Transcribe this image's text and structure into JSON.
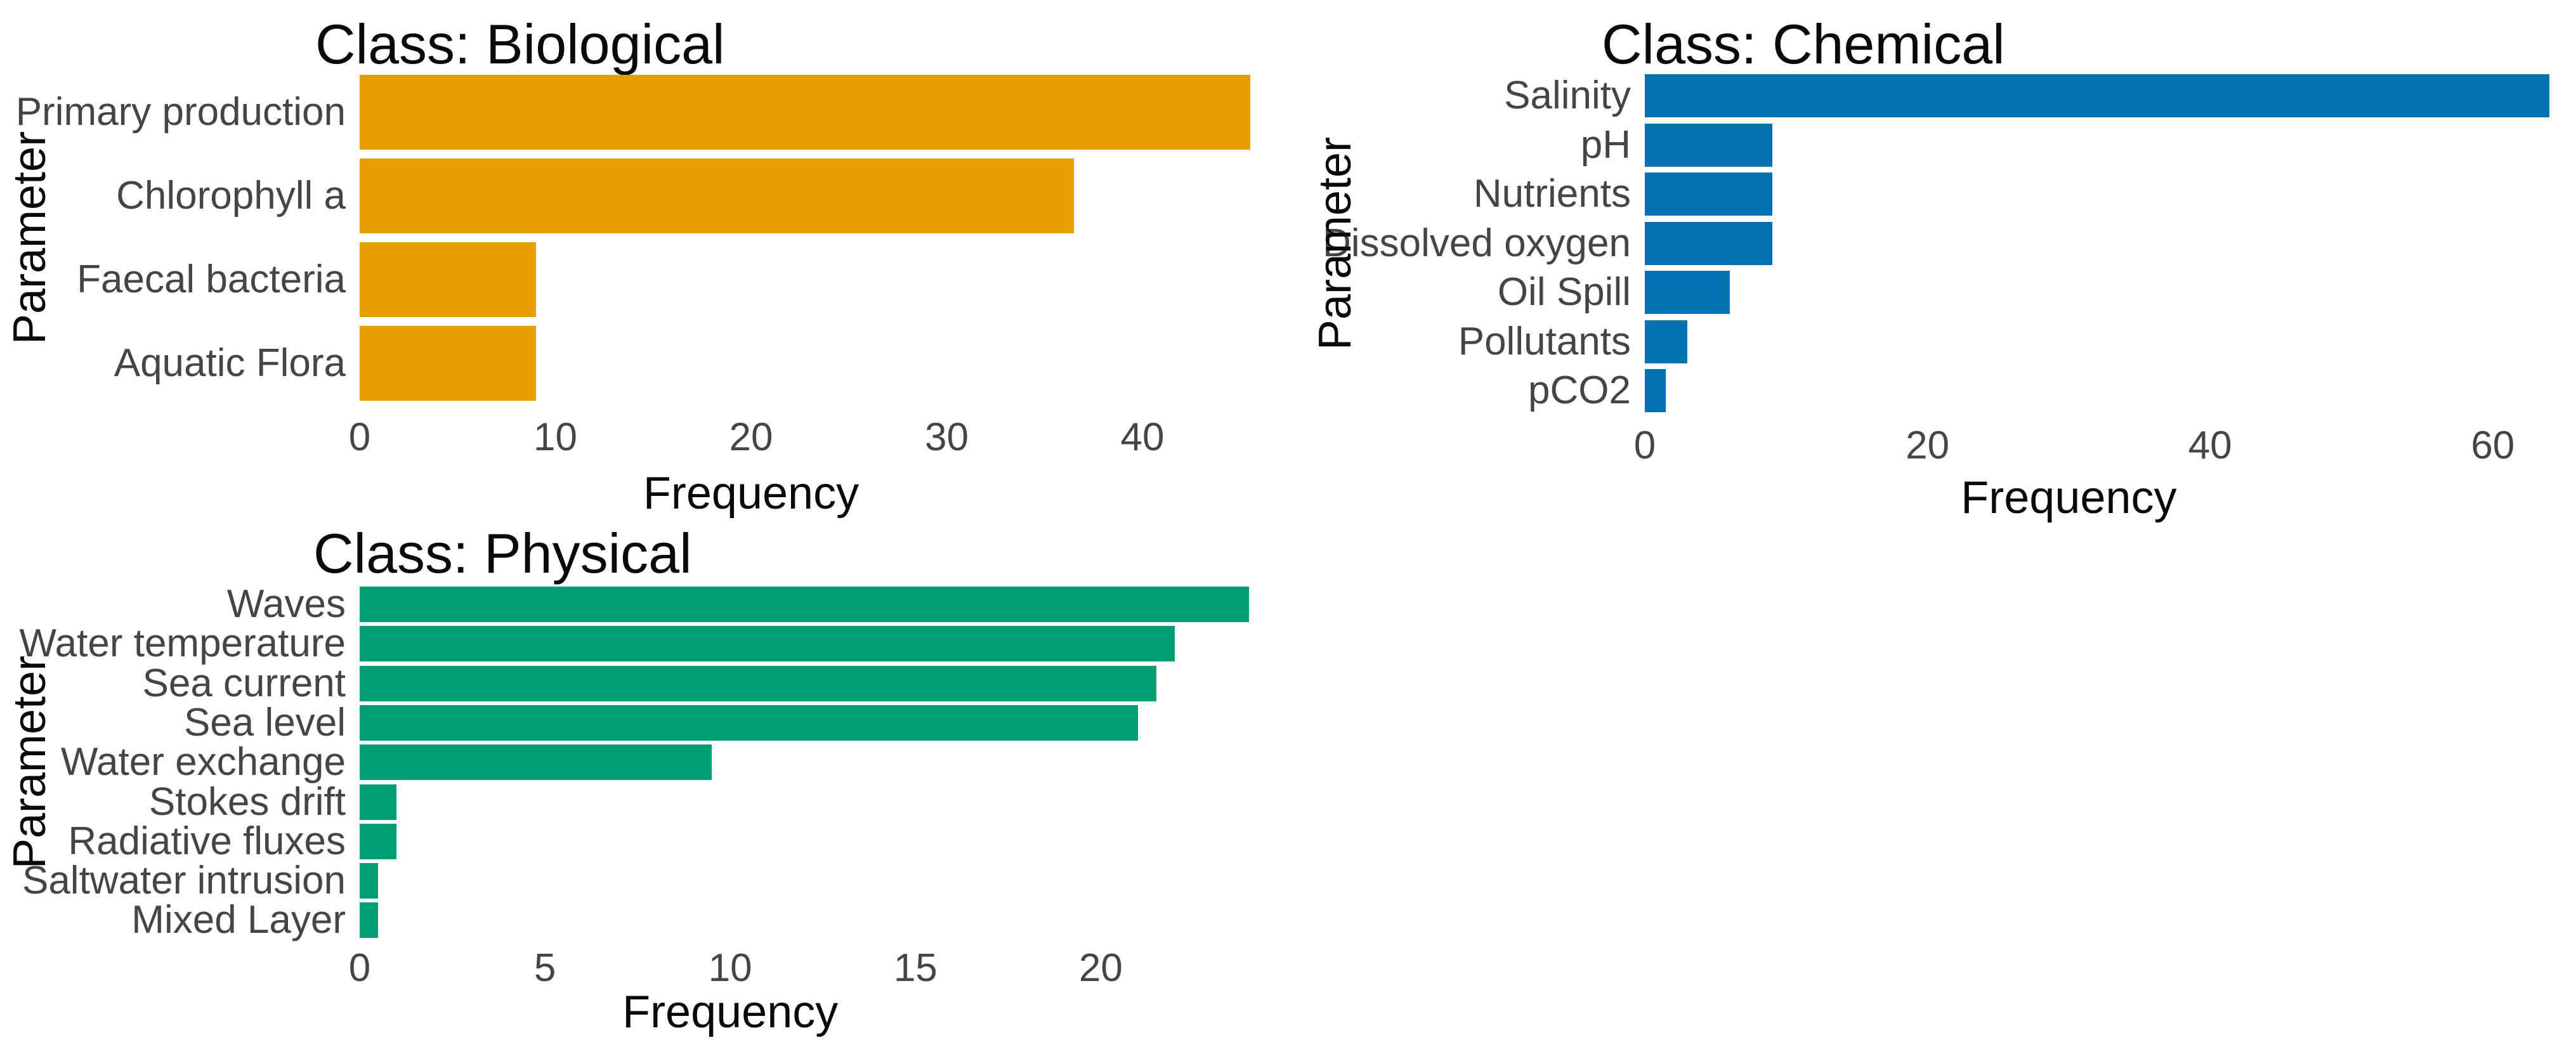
{
  "figure": {
    "background_color": "#FFFFFF",
    "axis_text_color": "#454545",
    "title_color": "#0A0A0A"
  },
  "chart_data": [
    {
      "id": "biological",
      "type": "bar",
      "orientation": "horizontal",
      "title": "Class: Biological",
      "xlabel": "Frequency",
      "ylabel": "Parameter",
      "bar_color": "#E69F00",
      "categories": [
        "Primary production",
        "Chlorophyll a",
        "Faecal bacteria",
        "Aquatic Flora"
      ],
      "values": [
        45.5,
        36.5,
        9,
        9
      ],
      "x_ticks": [
        0,
        10,
        20,
        30,
        40
      ],
      "xlim": [
        0,
        47.8
      ],
      "grid": false,
      "legend": "none"
    },
    {
      "id": "chemical",
      "type": "bar",
      "orientation": "horizontal",
      "title": "Class: Chemical",
      "xlabel": "Frequency",
      "ylabel": "Parameter",
      "bar_color": "#0072B2",
      "categories": [
        "Salinity",
        "pH",
        "Nutrients",
        "Dissolved oxygen",
        "Oil Spill",
        "Pollutants",
        "pCO2"
      ],
      "values": [
        64,
        9,
        9,
        9,
        6,
        3,
        1.5
      ],
      "x_ticks": [
        0,
        20,
        40,
        60
      ],
      "xlim": [
        0,
        67.2
      ],
      "grid": false,
      "legend": "none"
    },
    {
      "id": "physical",
      "type": "bar",
      "orientation": "horizontal",
      "title": "Class: Physical",
      "xlabel": "Frequency",
      "ylabel": "Parameter",
      "bar_color": "#009E73",
      "categories": [
        "Waves",
        "Water temperature",
        "Sea current",
        "Sea level",
        "Water exchange",
        "Stokes drift",
        "Radiative fluxes",
        "Saltwater intrusion",
        "Mixed Layer"
      ],
      "values": [
        24,
        22,
        21.5,
        21,
        9.5,
        1,
        1,
        0.5,
        0.5
      ],
      "x_ticks": [
        0,
        5,
        10,
        15,
        20
      ],
      "xlim": [
        0,
        25.2
      ],
      "grid": false,
      "legend": "none"
    }
  ]
}
